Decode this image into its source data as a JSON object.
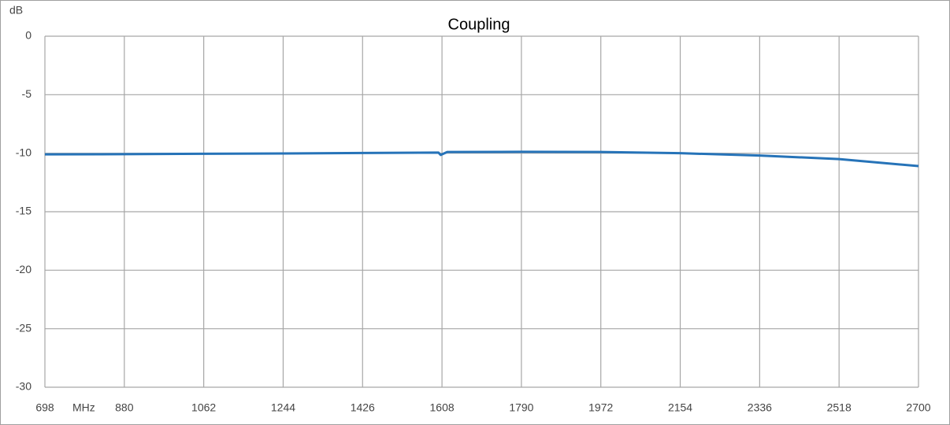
{
  "chart_data": {
    "type": "line",
    "title": "Coupling",
    "y_label": "dB",
    "x_label": "MHz",
    "x": [
      698,
      880,
      1062,
      1244,
      1426,
      1600,
      1605,
      1620,
      1790,
      1972,
      2154,
      2336,
      2518,
      2700
    ],
    "values": [
      -10.1,
      -10.08,
      -10.05,
      -10.02,
      -9.98,
      -9.95,
      -10.15,
      -9.9,
      -9.88,
      -9.9,
      -10.0,
      -10.2,
      -10.5,
      -11.1
    ],
    "color": "#2673b8",
    "xlim": [
      698,
      2700
    ],
    "xticks": [
      698,
      880,
      1062,
      1244,
      1426,
      1608,
      1790,
      1972,
      2154,
      2336,
      2518,
      2700
    ],
    "ylim": [
      -30,
      0
    ],
    "yticks": [
      0,
      -5,
      -10,
      -15,
      -20,
      -25,
      -30
    ],
    "grid": true
  }
}
